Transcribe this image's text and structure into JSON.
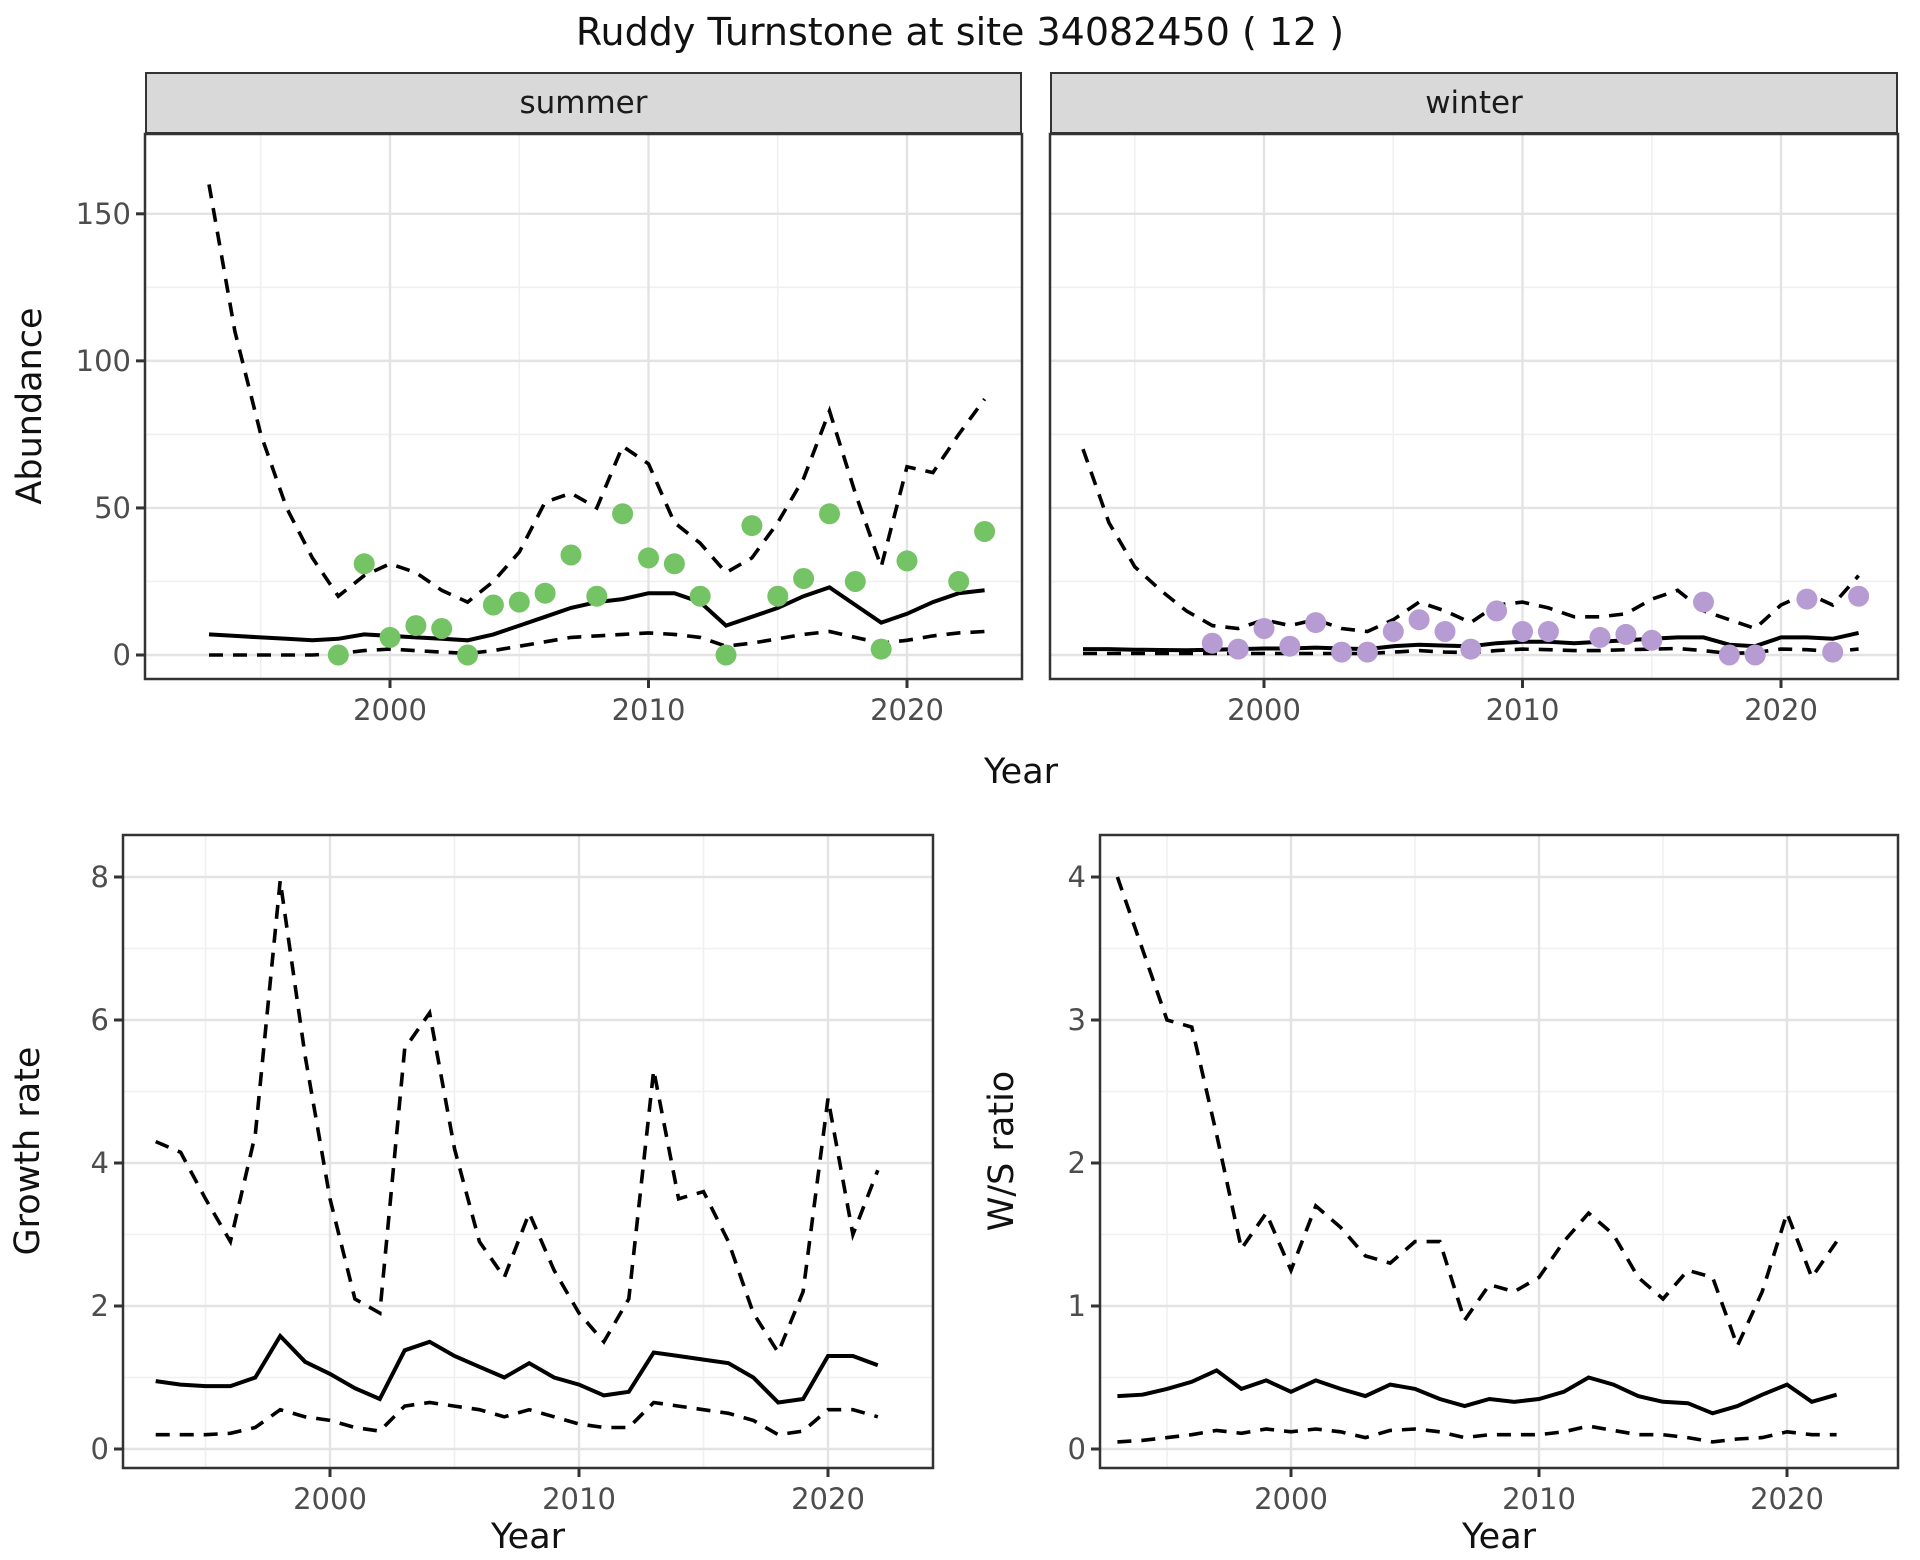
{
  "title": "Ruddy Turnstone at site 34082450 ( 12 )",
  "labels": {
    "summer": "summer",
    "winter": "winter",
    "abundance": "Abundance",
    "growth_rate": "Growth rate",
    "ws_ratio": "W/S ratio",
    "year": "Year"
  },
  "colors": {
    "summer_point": "#74C365",
    "winter_point": "#B69CD3",
    "line": "#000000",
    "strip_bg": "#D9D9D9",
    "panel_border": "#333333",
    "grid_major": "#E3E3E3",
    "grid_minor": "#F0F0F0",
    "tick_text": "#4D4D4D"
  },
  "chart_data": [
    {
      "id": "abundance_summer",
      "type": "line",
      "facet": "summer",
      "title": "",
      "xlabel": "Year",
      "ylabel": "Abundance",
      "xticks": [
        2000,
        2010,
        2020
      ],
      "yticks": [
        0,
        50,
        100,
        150
      ],
      "xlim": [
        1990.5,
        2024.5
      ],
      "ylim": [
        -8,
        177
      ],
      "grid": true,
      "x": [
        1993,
        1994,
        1995,
        1996,
        1997,
        1998,
        1999,
        2000,
        2001,
        2002,
        2003,
        2004,
        2005,
        2006,
        2007,
        2008,
        2009,
        2010,
        2011,
        2012,
        2013,
        2014,
        2015,
        2016,
        2017,
        2018,
        2019,
        2020,
        2021,
        2022,
        2023
      ],
      "series": [
        {
          "name": "median",
          "style": "solid",
          "values": [
            7,
            6.5,
            6,
            5.5,
            5,
            5.5,
            7,
            6.5,
            6,
            5.5,
            5,
            7,
            10,
            13,
            16,
            18,
            19,
            21,
            21,
            18,
            10,
            13,
            16,
            20,
            23,
            17,
            11,
            14,
            18,
            21,
            22
          ]
        },
        {
          "name": "upper_ci",
          "style": "dashed",
          "values": [
            160,
            110,
            75,
            50,
            33,
            20,
            27,
            31,
            28,
            22,
            18,
            25,
            35,
            52,
            55,
            50,
            71,
            65,
            45,
            38,
            28,
            33,
            45,
            60,
            83,
            55,
            30,
            64,
            62,
            75,
            87
          ]
        },
        {
          "name": "lower_ci",
          "style": "dashed",
          "values": [
            0,
            0,
            0,
            0,
            0,
            0.5,
            1.5,
            2,
            1.5,
            1,
            0.5,
            1.5,
            3,
            4.5,
            6,
            6.5,
            7,
            7.5,
            7,
            6,
            3,
            4,
            5.5,
            7,
            8,
            6,
            4,
            5,
            6.5,
            7.5,
            8
          ]
        }
      ],
      "points": {
        "color_key": "summer_point",
        "data": [
          [
            1998,
            0
          ],
          [
            1999,
            31
          ],
          [
            2000,
            6
          ],
          [
            2001,
            10
          ],
          [
            2002,
            9
          ],
          [
            2003,
            0
          ],
          [
            2004,
            17
          ],
          [
            2005,
            18
          ],
          [
            2006,
            21
          ],
          [
            2007,
            34
          ],
          [
            2008,
            20
          ],
          [
            2009,
            48
          ],
          [
            2010,
            33
          ],
          [
            2011,
            31
          ],
          [
            2012,
            20
          ],
          [
            2013,
            0
          ],
          [
            2014,
            44
          ],
          [
            2015,
            20
          ],
          [
            2016,
            26
          ],
          [
            2017,
            48
          ],
          [
            2018,
            25
          ],
          [
            2019,
            2
          ],
          [
            2020,
            32
          ],
          [
            2022,
            25
          ],
          [
            2023,
            42
          ]
        ]
      }
    },
    {
      "id": "abundance_winter",
      "type": "line",
      "facet": "winter",
      "title": "",
      "xlabel": "Year",
      "ylabel": "Abundance",
      "xticks": [
        2000,
        2010,
        2020
      ],
      "yticks": [
        0,
        50,
        100,
        150
      ],
      "xlim": [
        1991.7,
        2024.6
      ],
      "ylim": [
        -8,
        177
      ],
      "grid": true,
      "x": [
        1993,
        1994,
        1995,
        1996,
        1997,
        1998,
        1999,
        2000,
        2001,
        2002,
        2003,
        2004,
        2005,
        2006,
        2007,
        2008,
        2009,
        2010,
        2011,
        2012,
        2013,
        2014,
        2015,
        2016,
        2017,
        2018,
        2019,
        2020,
        2021,
        2022,
        2023
      ],
      "series": [
        {
          "name": "median",
          "style": "solid",
          "values": [
            2,
            2,
            1.8,
            1.7,
            1.6,
            1.8,
            2,
            2.2,
            2.2,
            2.5,
            2.2,
            2,
            3,
            3.5,
            3.2,
            3,
            4,
            4.5,
            4.5,
            4,
            4.5,
            5,
            5.5,
            6,
            6,
            3.5,
            3,
            6,
            6,
            5.5,
            7.5
          ]
        },
        {
          "name": "upper_ci",
          "style": "dashed",
          "values": [
            70,
            45,
            30,
            22,
            15,
            10,
            9,
            12,
            10,
            12,
            9,
            8,
            12,
            18,
            15,
            11,
            17,
            18,
            16,
            13,
            13,
            14,
            19,
            22,
            15,
            12,
            9,
            17,
            21,
            17,
            27
          ]
        },
        {
          "name": "lower_ci",
          "style": "dashed",
          "values": [
            0.5,
            0.5,
            0.5,
            0.5,
            0.5,
            0.5,
            0.5,
            0.5,
            0.5,
            0.5,
            0.5,
            0.5,
            1,
            1.5,
            1,
            0.8,
            1.5,
            2,
            1.8,
            1.5,
            1.5,
            1.8,
            2,
            2.2,
            1.5,
            0.5,
            0.8,
            2,
            1.8,
            1.2,
            2
          ]
        }
      ],
      "points": {
        "color_key": "winter_point",
        "data": [
          [
            1998,
            4
          ],
          [
            1999,
            2
          ],
          [
            2000,
            9
          ],
          [
            2001,
            3
          ],
          [
            2002,
            11
          ],
          [
            2003,
            1
          ],
          [
            2004,
            1
          ],
          [
            2005,
            8
          ],
          [
            2006,
            12
          ],
          [
            2007,
            8
          ],
          [
            2008,
            2
          ],
          [
            2009,
            15
          ],
          [
            2010,
            8
          ],
          [
            2011,
            8
          ],
          [
            2013,
            6
          ],
          [
            2014,
            7
          ],
          [
            2015,
            5
          ],
          [
            2017,
            18
          ],
          [
            2018,
            0
          ],
          [
            2019,
            0
          ],
          [
            2021,
            19
          ],
          [
            2022,
            1
          ],
          [
            2023,
            20
          ]
        ]
      }
    },
    {
      "id": "growth_rate",
      "type": "line",
      "title": "",
      "xlabel": "Year",
      "ylabel": "Growth rate",
      "xticks": [
        2000,
        2010,
        2020
      ],
      "yticks": [
        0,
        2,
        4,
        6,
        8
      ],
      "xlim": [
        1991.7,
        2024.3
      ],
      "ylim": [
        -0.3,
        8.6
      ],
      "grid": true,
      "x": [
        1993,
        1994,
        1995,
        1996,
        1997,
        1998,
        1999,
        2000,
        2001,
        2002,
        2003,
        2004,
        2005,
        2006,
        2007,
        2008,
        2009,
        2010,
        2011,
        2012,
        2013,
        2014,
        2015,
        2016,
        2017,
        2018,
        2019,
        2020,
        2021,
        2022
      ],
      "series": [
        {
          "name": "median",
          "style": "solid",
          "values": [
            0.95,
            0.9,
            0.88,
            0.88,
            1.0,
            1.58,
            1.22,
            1.05,
            0.85,
            0.7,
            1.38,
            1.5,
            1.3,
            1.15,
            1.0,
            1.2,
            1.0,
            0.9,
            0.75,
            0.8,
            1.35,
            1.3,
            1.25,
            1.2,
            1.0,
            0.65,
            0.7,
            1.3,
            1.3,
            1.17
          ]
        },
        {
          "name": "upper_ci",
          "style": "dashed",
          "values": [
            4.3,
            4.15,
            3.5,
            2.9,
            4.4,
            7.95,
            5.5,
            3.5,
            2.1,
            1.9,
            5.6,
            6.1,
            4.2,
            2.9,
            2.4,
            3.3,
            2.5,
            1.9,
            1.5,
            2.1,
            5.3,
            3.5,
            3.6,
            2.9,
            1.9,
            1.35,
            2.2,
            4.9,
            3.0,
            3.9
          ]
        },
        {
          "name": "lower_ci",
          "style": "dashed",
          "values": [
            0.2,
            0.2,
            0.2,
            0.22,
            0.3,
            0.55,
            0.45,
            0.4,
            0.3,
            0.25,
            0.6,
            0.65,
            0.6,
            0.55,
            0.45,
            0.55,
            0.45,
            0.35,
            0.3,
            0.3,
            0.65,
            0.6,
            0.55,
            0.5,
            0.4,
            0.2,
            0.25,
            0.55,
            0.55,
            0.45
          ]
        }
      ]
    },
    {
      "id": "ws_ratio",
      "type": "line",
      "title": "",
      "xlabel": "Year",
      "ylabel": "W/S ratio",
      "xticks": [
        2000,
        2010,
        2020
      ],
      "yticks": [
        0,
        1,
        2,
        3,
        4
      ],
      "xlim": [
        1992.3,
        2024.5
      ],
      "ylim": [
        -0.15,
        4.3
      ],
      "grid": true,
      "x": [
        1993,
        1994,
        1995,
        1996,
        1997,
        1998,
        1999,
        2000,
        2001,
        2002,
        2003,
        2004,
        2005,
        2006,
        2007,
        2008,
        2009,
        2010,
        2011,
        2012,
        2013,
        2014,
        2015,
        2016,
        2017,
        2018,
        2019,
        2020,
        2021,
        2022
      ],
      "series": [
        {
          "name": "median",
          "style": "solid",
          "values": [
            0.37,
            0.38,
            0.42,
            0.47,
            0.55,
            0.42,
            0.48,
            0.4,
            0.48,
            0.42,
            0.37,
            0.45,
            0.42,
            0.35,
            0.3,
            0.35,
            0.33,
            0.35,
            0.4,
            0.5,
            0.45,
            0.37,
            0.33,
            0.32,
            0.25,
            0.3,
            0.38,
            0.45,
            0.33,
            0.38
          ]
        },
        {
          "name": "upper_ci",
          "style": "dashed",
          "values": [
            4.0,
            3.5,
            3.0,
            2.95,
            2.2,
            1.4,
            1.65,
            1.25,
            1.7,
            1.55,
            1.35,
            1.3,
            1.45,
            1.45,
            0.9,
            1.15,
            1.1,
            1.2,
            1.45,
            1.65,
            1.5,
            1.2,
            1.05,
            1.25,
            1.2,
            0.72,
            1.1,
            1.65,
            1.2,
            1.45
          ]
        },
        {
          "name": "lower_ci",
          "style": "dashed",
          "values": [
            0.05,
            0.06,
            0.08,
            0.1,
            0.13,
            0.11,
            0.14,
            0.12,
            0.14,
            0.12,
            0.08,
            0.13,
            0.14,
            0.12,
            0.08,
            0.1,
            0.1,
            0.1,
            0.12,
            0.16,
            0.13,
            0.1,
            0.1,
            0.08,
            0.05,
            0.07,
            0.08,
            0.12,
            0.1,
            0.1
          ]
        }
      ]
    }
  ]
}
